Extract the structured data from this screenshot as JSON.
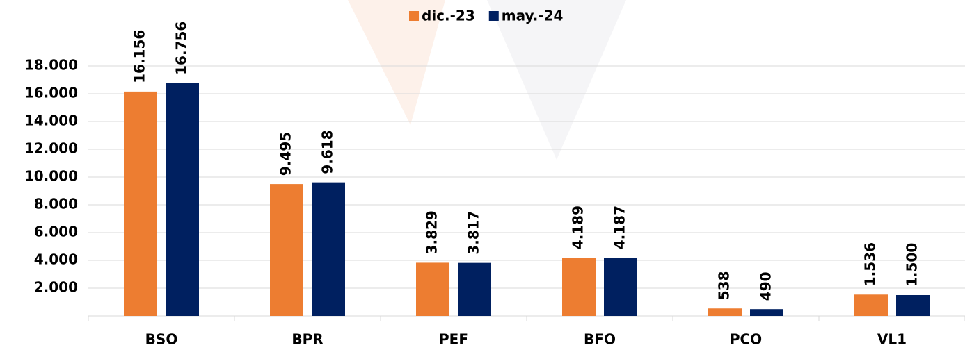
{
  "chart_data": {
    "type": "bar",
    "categories": [
      "BSO",
      "BPR",
      "PEF",
      "BFO",
      "PCO",
      "VL1"
    ],
    "series": [
      {
        "name": "dic.-23",
        "color": "#ED7D31",
        "values": [
          16156,
          9495,
          3829,
          4189,
          538,
          1536
        ],
        "value_labels": [
          "16.156",
          "9.495",
          "3.829",
          "4.189",
          "538",
          "1.536"
        ]
      },
      {
        "name": "may.-24",
        "color": "#002060",
        "values": [
          16756,
          9618,
          3817,
          4187,
          490,
          1500
        ],
        "value_labels": [
          "16.756",
          "9.618",
          "3.817",
          "4.187",
          "490",
          "1.500"
        ]
      }
    ],
    "ylim": [
      0,
      18000
    ],
    "yticks": [
      {
        "value": 2000,
        "label": "2.000"
      },
      {
        "value": 4000,
        "label": "4.000"
      },
      {
        "value": 6000,
        "label": "6.000"
      },
      {
        "value": 8000,
        "label": "8.000"
      },
      {
        "value": 10000,
        "label": "10.000"
      },
      {
        "value": 12000,
        "label": "12.000"
      },
      {
        "value": 14000,
        "label": "14.000"
      },
      {
        "value": 16000,
        "label": "16.000"
      },
      {
        "value": 18000,
        "label": "18.000"
      }
    ],
    "grid": true,
    "legend": "top"
  }
}
